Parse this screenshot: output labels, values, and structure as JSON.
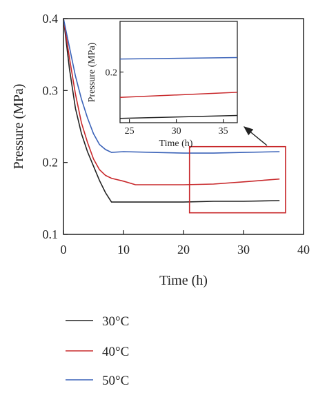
{
  "colors": {
    "30C": "#222222",
    "40C": "#c8282b",
    "50C": "#3a62b8",
    "highlight": "#c8282b",
    "axis": "#222222"
  },
  "chart_data": [
    {
      "type": "line",
      "xlabel": "Time (h)",
      "ylabel": "Pressure (MPa)",
      "xlim": [
        0,
        40
      ],
      "ylim": [
        0.1,
        0.4
      ],
      "xticks": [
        0,
        10,
        20,
        30,
        40
      ],
      "yticks": [
        0.1,
        0.2,
        0.3,
        0.4
      ],
      "xtick_labels": [
        "0",
        "10",
        "20",
        "30",
        "40"
      ],
      "ytick_labels": [
        "0.1",
        "0.2",
        "0.3",
        "0.4"
      ],
      "grid": false,
      "legend": "below",
      "series": [
        {
          "name": "30°C",
          "color_key": "30C",
          "x": [
            0,
            1,
            2,
            3,
            4,
            5,
            6,
            7,
            8,
            10,
            15,
            20,
            25,
            30,
            36
          ],
          "y": [
            0.4,
            0.33,
            0.275,
            0.24,
            0.215,
            0.195,
            0.175,
            0.158,
            0.145,
            0.145,
            0.145,
            0.145,
            0.146,
            0.146,
            0.147
          ]
        },
        {
          "name": "40°C",
          "color_key": "40C",
          "x": [
            0,
            1,
            2,
            3,
            4,
            5,
            6,
            7,
            8,
            10,
            12,
            15,
            20,
            25,
            30,
            36
          ],
          "y": [
            0.4,
            0.345,
            0.295,
            0.255,
            0.228,
            0.205,
            0.19,
            0.182,
            0.178,
            0.174,
            0.169,
            0.169,
            0.169,
            0.17,
            0.173,
            0.177
          ]
        },
        {
          "name": "50°C",
          "color_key": "50C",
          "x": [
            0,
            1,
            2,
            3,
            4,
            5,
            6,
            7,
            8,
            10,
            15,
            20,
            25,
            30,
            36
          ],
          "y": [
            0.4,
            0.36,
            0.32,
            0.288,
            0.262,
            0.24,
            0.225,
            0.218,
            0.214,
            0.215,
            0.214,
            0.213,
            0.213,
            0.214,
            0.215
          ]
        }
      ],
      "highlight_box": {
        "xlim": [
          21,
          37
        ],
        "ylim": [
          0.13,
          0.222
        ]
      }
    },
    {
      "type": "line",
      "role": "inset",
      "xlabel": "Time (h)",
      "ylabel": "Pressure (MPa)",
      "xlim": [
        24,
        36.5
      ],
      "ylim": [
        0.13,
        0.27
      ],
      "xticks": [
        25,
        30,
        35
      ],
      "yticks": [
        0.2
      ],
      "xtick_labels": [
        "25",
        "30",
        "35"
      ],
      "ytick_labels": [
        "0.2"
      ],
      "grid": false,
      "series": [
        {
          "name": "30°C",
          "color_key": "30C",
          "x": [
            24,
            36.5
          ],
          "y": [
            0.136,
            0.14
          ]
        },
        {
          "name": "40°C",
          "color_key": "40C",
          "x": [
            24,
            36.5
          ],
          "y": [
            0.165,
            0.172
          ]
        },
        {
          "name": "50°C",
          "color_key": "50C",
          "x": [
            24,
            36.5
          ],
          "y": [
            0.218,
            0.22
          ]
        }
      ]
    }
  ]
}
